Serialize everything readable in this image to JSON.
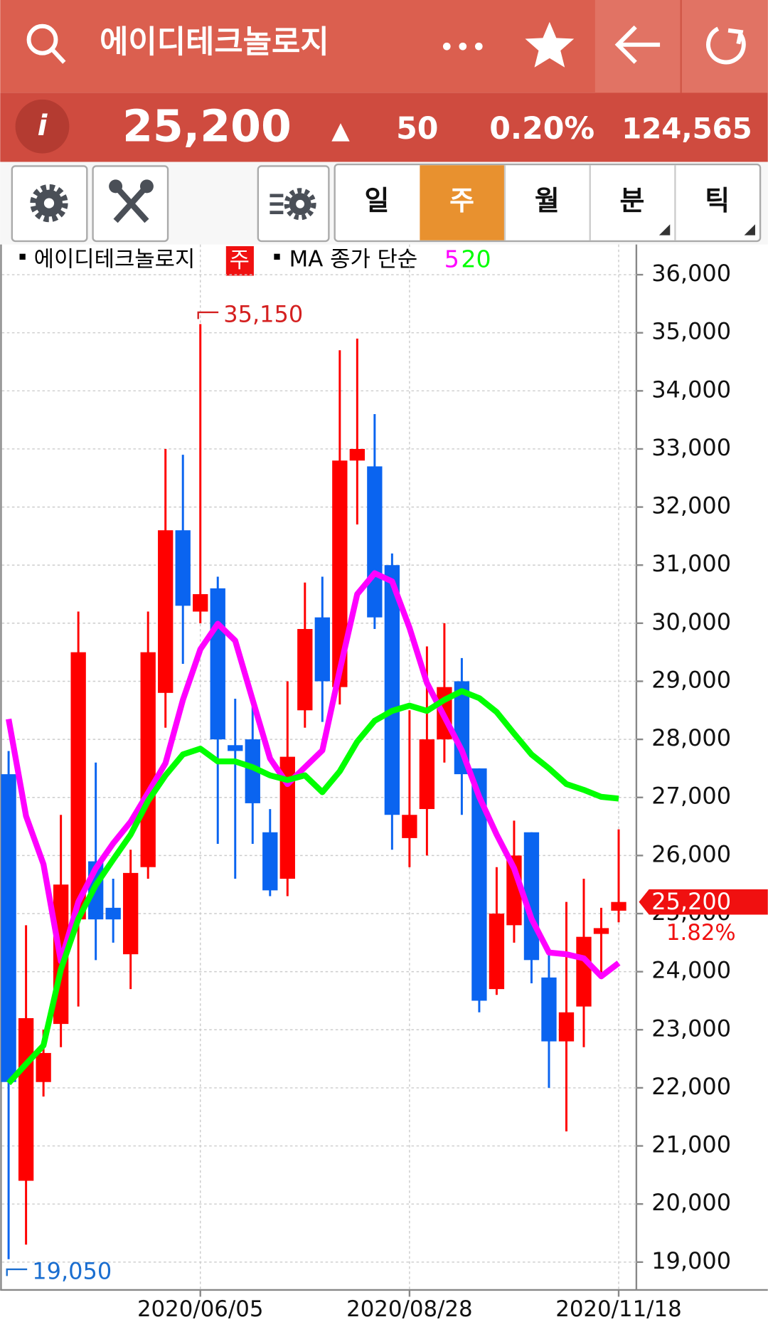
{
  "header": {
    "title": "에이디테크놀로지",
    "price": "25,200",
    "change_arrow": "▲",
    "change": "50",
    "change_pct": "0.20%",
    "volume": "124,565"
  },
  "toolbar": {
    "periods": [
      "일",
      "주",
      "월",
      "분",
      "틱"
    ],
    "selected": 1
  },
  "chart_data": {
    "type": "candlestick",
    "legend": {
      "name": "에이디테크놀로지",
      "period": "주",
      "ma_label": "MA 종가 단순"
    },
    "categories": [
      null,
      null,
      null,
      null,
      null,
      null,
      null,
      null,
      null,
      null,
      null,
      "2020/06/05",
      null,
      null,
      null,
      null,
      null,
      null,
      null,
      null,
      null,
      null,
      null,
      "2020/08/28",
      null,
      null,
      null,
      null,
      null,
      null,
      null,
      null,
      null,
      null,
      null,
      "2020/11/18"
    ],
    "open": [
      27400,
      20400,
      22100,
      23100,
      24900,
      25900,
      25100,
      24300,
      25800,
      28800,
      31600,
      30200,
      30600,
      27900,
      28000,
      26400,
      25600,
      28500,
      30100,
      28900,
      32800,
      32700,
      31000,
      26300,
      26800,
      28000,
      29000,
      27500,
      23700,
      24800,
      26400,
      23900,
      22800,
      23400,
      24650,
      25050
    ],
    "high": [
      27800,
      24800,
      23000,
      26700,
      30200,
      27600,
      25600,
      26100,
      30200,
      33000,
      32900,
      35150,
      30800,
      28700,
      28600,
      26800,
      29000,
      30700,
      30800,
      34700,
      34900,
      33600,
      31200,
      28500,
      29600,
      30000,
      29400,
      27500,
      25800,
      26600,
      26400,
      24400,
      25200,
      25600,
      25100,
      26450
    ],
    "low": [
      19050,
      19300,
      21850,
      22700,
      23400,
      24200,
      24500,
      23700,
      25600,
      28200,
      29300,
      30000,
      26200,
      25600,
      26200,
      25300,
      25300,
      28200,
      28300,
      28600,
      31700,
      29900,
      26100,
      25800,
      26000,
      27600,
      26700,
      23300,
      23600,
      24500,
      23800,
      22000,
      21250,
      22700,
      23900,
      24850
    ],
    "close": [
      22100,
      23200,
      22600,
      25500,
      29500,
      24900,
      24900,
      25700,
      29500,
      31600,
      30300,
      30500,
      28000,
      27800,
      26900,
      25400,
      27700,
      29900,
      29000,
      32800,
      33000,
      30100,
      26700,
      26700,
      28000,
      28900,
      27400,
      23500,
      25000,
      26000,
      24200,
      22800,
      23300,
      24600,
      24750,
      25200
    ],
    "up_color": "#ff0000",
    "down_color": "#0a64f0",
    "series": [
      {
        "name": "5",
        "color": "#ff00ff",
        "values": [
          28350,
          26680,
          25850,
          24180,
          25200,
          25780,
          26210,
          26580,
          27080,
          27590,
          28680,
          29550,
          29990,
          29700,
          28680,
          27670,
          27230,
          27520,
          27810,
          29190,
          30500,
          30860,
          30720,
          29920,
          28970,
          28390,
          27810,
          27010,
          26360,
          25780,
          24910,
          24330,
          24300,
          24230,
          23920,
          24150
        ]
      },
      {
        "name": "20",
        "color": "#00ff00",
        "values": [
          22080,
          22410,
          22730,
          24040,
          24910,
          25490,
          25930,
          26360,
          26940,
          27380,
          27740,
          27840,
          27620,
          27620,
          27520,
          27380,
          27300,
          27380,
          27090,
          27450,
          27960,
          28320,
          28490,
          28580,
          28490,
          28680,
          28830,
          28710,
          28470,
          28100,
          27740,
          27500,
          27230,
          27130,
          27010,
          26980
        ]
      }
    ],
    "ylim": [
      18520,
      36520
    ],
    "yticks": [
      {
        "value": 19000,
        "label": "19,000"
      },
      {
        "value": 20000,
        "label": "20,000"
      },
      {
        "value": 21000,
        "label": "21,000"
      },
      {
        "value": 22000,
        "label": "22,000"
      },
      {
        "value": 23000,
        "label": "23,000"
      },
      {
        "value": 24000,
        "label": "24,000"
      },
      {
        "value": 25000,
        "label": "25,000"
      },
      {
        "value": 26000,
        "label": "26,000"
      },
      {
        "value": 27000,
        "label": "27,000"
      },
      {
        "value": 28000,
        "label": "28,000"
      },
      {
        "value": 29000,
        "label": "29,000"
      },
      {
        "value": 30000,
        "label": "30,000"
      },
      {
        "value": 31000,
        "label": "31,000"
      },
      {
        "value": 32000,
        "label": "32,000"
      },
      {
        "value": 33000,
        "label": "33,000"
      },
      {
        "value": 34000,
        "label": "34,000"
      },
      {
        "value": 35000,
        "label": "35,000"
      },
      {
        "value": 36000,
        "label": "36,000"
      }
    ],
    "grid": true,
    "annotations": [
      {
        "value": 35150,
        "label": "35,150",
        "color": "#d42020"
      },
      {
        "value": 19050,
        "label": "19,050",
        "color": "#1a6ed0"
      }
    ],
    "current": {
      "value": 25200,
      "label": "25,200",
      "change_pct": "1.82%",
      "color": "#f01010"
    }
  }
}
